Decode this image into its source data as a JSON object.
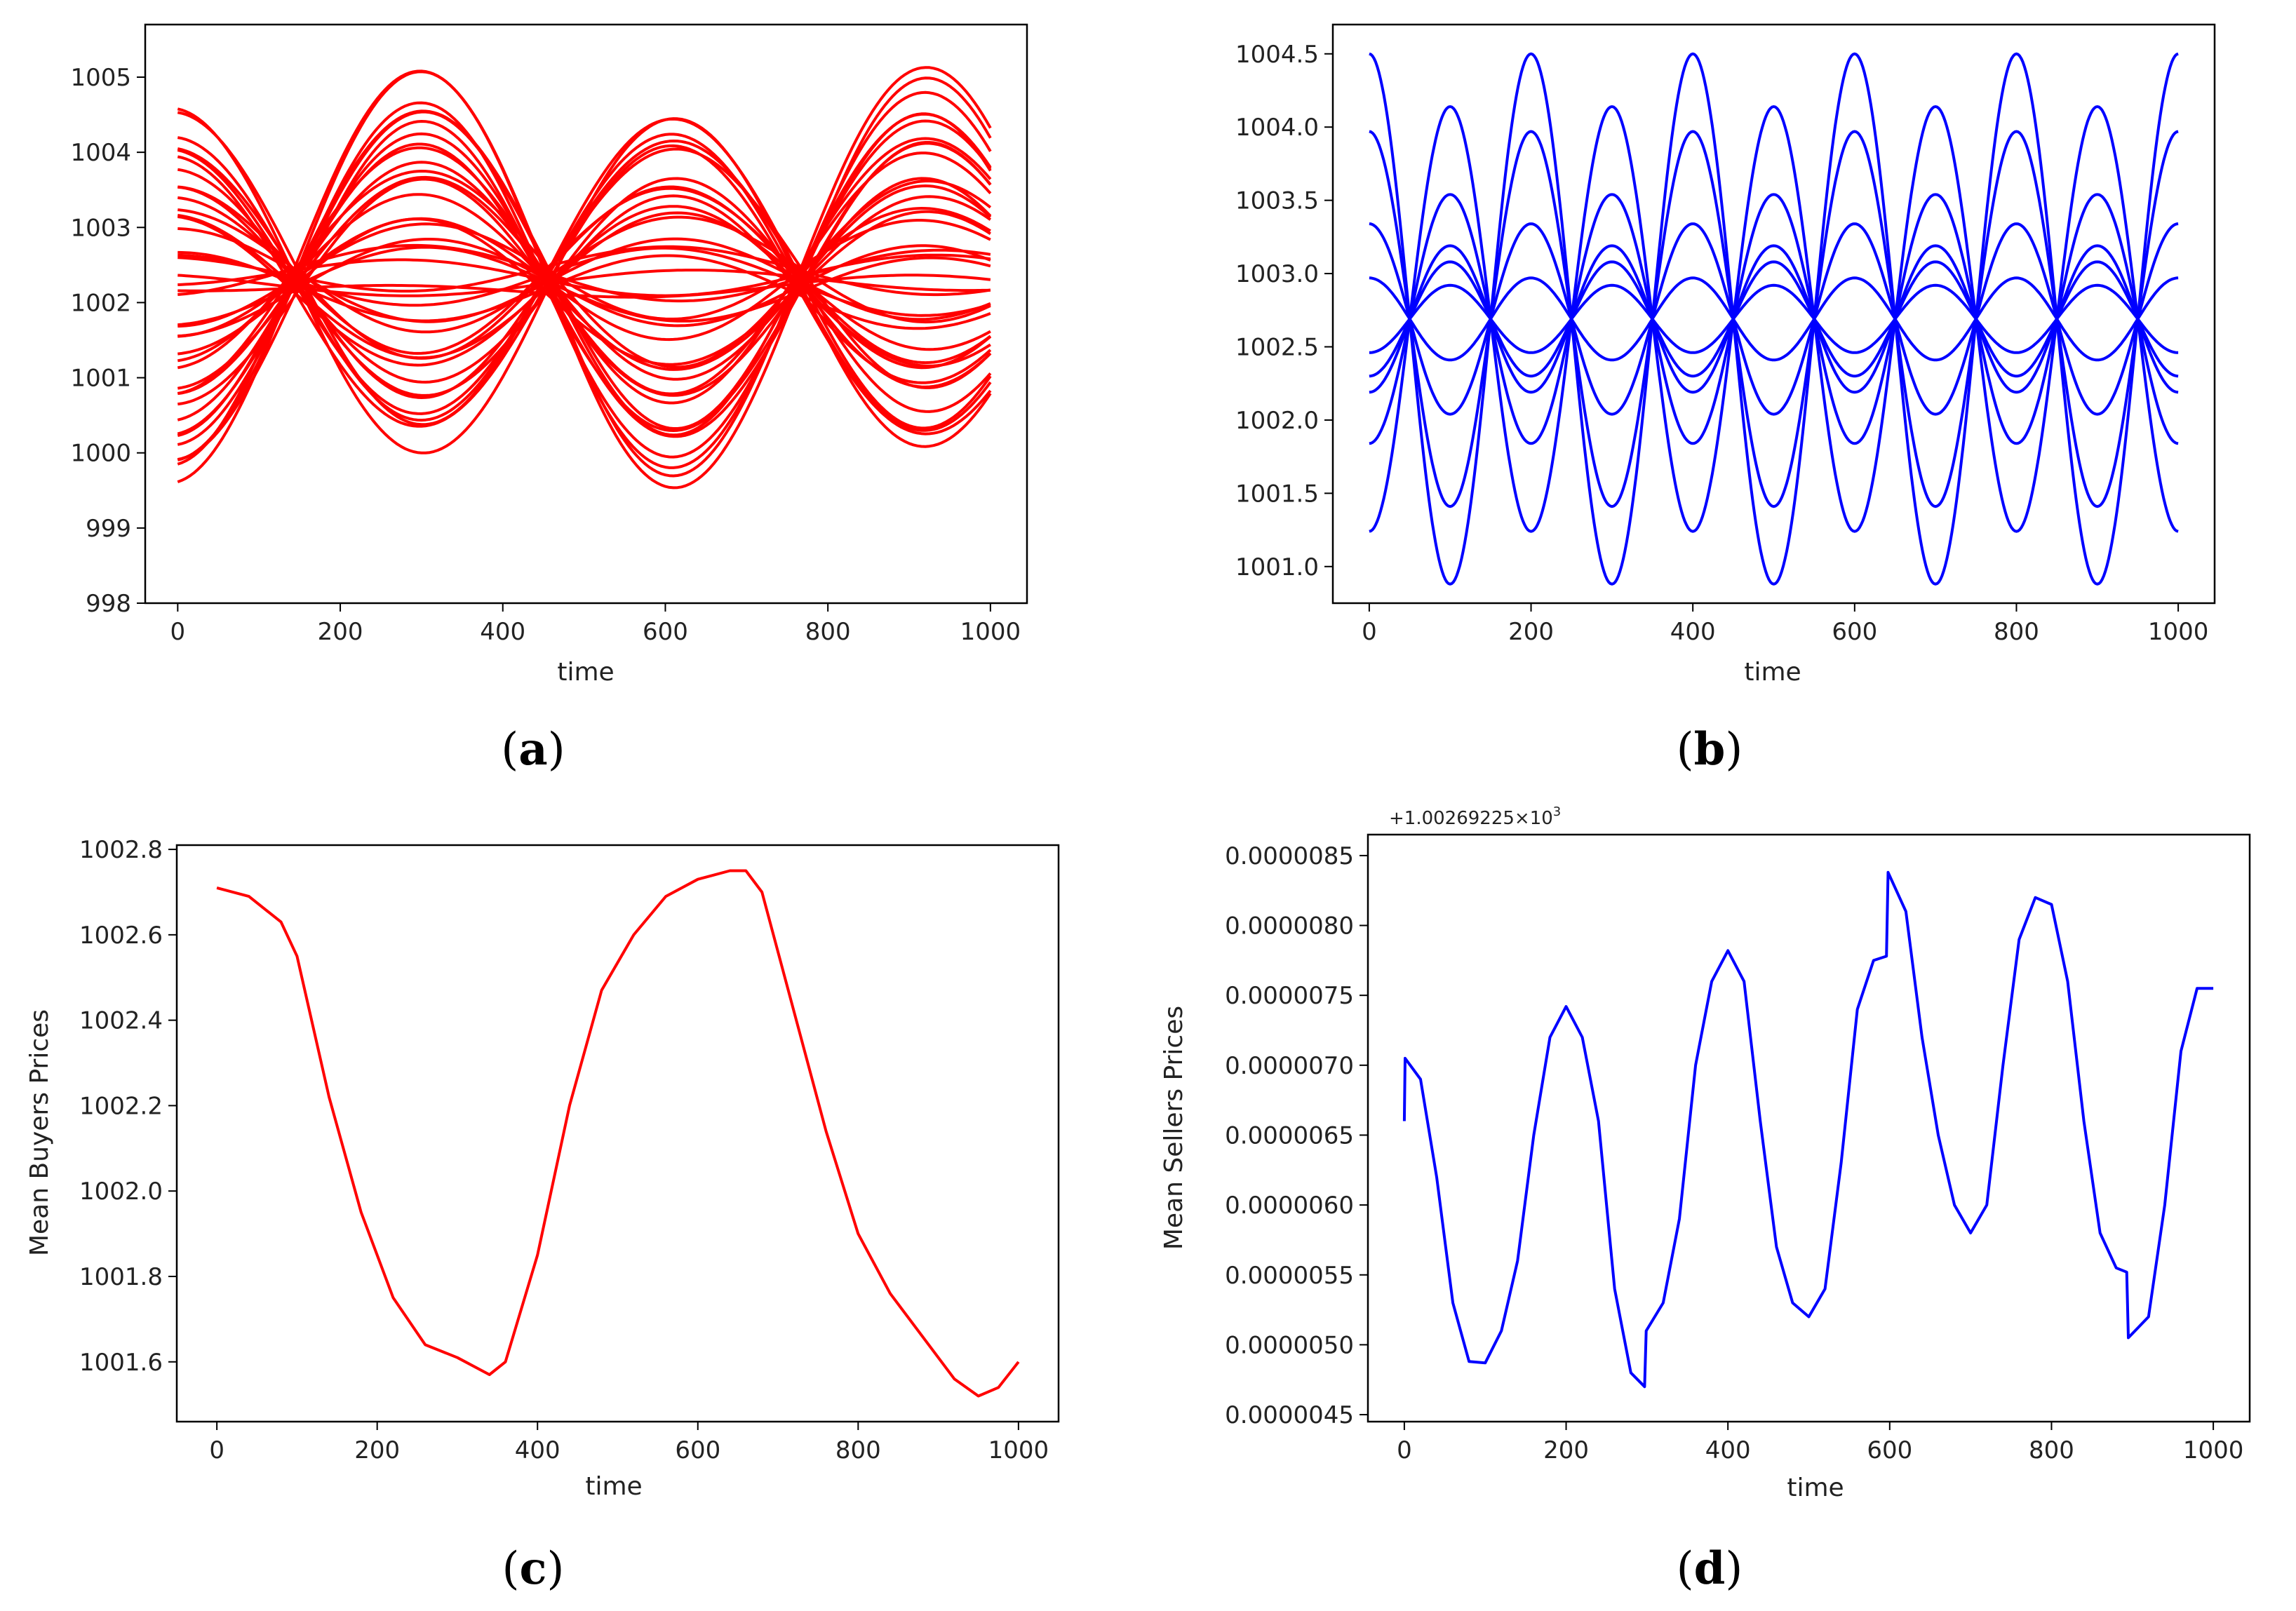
{
  "chart_data": [
    {
      "id": "a",
      "type": "line",
      "caption": "a",
      "xlabel": "time",
      "ylabel": "",
      "xlim": [
        -40,
        1045
      ],
      "ylim": [
        998,
        1005.7
      ],
      "xticks": [
        "0",
        "200",
        "400",
        "600",
        "800",
        "1000"
      ],
      "xtick_values": [
        0,
        200,
        400,
        600,
        800,
        1000
      ],
      "yticks": [
        "998",
        "999",
        "1000",
        "1001",
        "1002",
        "1003",
        "1004",
        "1005"
      ],
      "ytick_values": [
        998,
        999,
        1000,
        1001,
        1002,
        1003,
        1004,
        1005
      ],
      "color": "#ff0000",
      "series_description": "approx. 60 oscillating trajectories, period ~620, crossing near t=160, 470, 780 around 1002.3",
      "series_amplitudes": [
        2.7,
        2.65,
        2.45,
        2.3,
        2.2,
        2.1,
        1.95,
        1.85,
        1.7,
        1.6,
        1.5,
        1.35,
        1.25,
        1.1,
        0.95,
        0.85,
        0.7,
        0.6,
        0.45,
        0.3,
        0.2,
        0.1,
        -0.1,
        -0.25,
        -0.4,
        -0.5,
        -0.6,
        -0.75,
        -0.9,
        -1.0,
        -1.1,
        -1.2,
        -1.3,
        -1.45,
        -1.6,
        -1.75,
        -1.85,
        -1.95,
        -2.1,
        -2.25
      ]
    },
    {
      "id": "b",
      "type": "line",
      "caption": "b",
      "xlabel": "time",
      "ylabel": "",
      "xlim": [
        -45,
        1045
      ],
      "ylim": [
        1000.75,
        1004.7
      ],
      "xticks": [
        "0",
        "200",
        "400",
        "600",
        "800",
        "1000"
      ],
      "xtick_values": [
        0,
        200,
        400,
        600,
        800,
        1000
      ],
      "yticks": [
        "1001.0",
        "1001.5",
        "1002.0",
        "1002.5",
        "1003.0",
        "1003.5",
        "1004.0",
        "1004.5"
      ],
      "ytick_values": [
        1001.0,
        1001.5,
        1002.0,
        1002.5,
        1003.0,
        1003.5,
        1004.0,
        1004.5
      ],
      "color": "#0000ff",
      "series_description": "sinusoidal trajectories with period 200 all crossing 1002.69 every 100 time units",
      "center": 1002.69,
      "series_amplitudes": [
        1.81,
        1.28,
        0.65,
        0.28,
        -0.23,
        -0.39,
        -0.5,
        -0.85,
        -1.45
      ]
    },
    {
      "id": "c",
      "type": "line",
      "caption": "c",
      "xlabel": "time",
      "ylabel": "Mean Buyers Prices",
      "xlim": [
        -50,
        1050
      ],
      "ylim": [
        1001.46,
        1002.81
      ],
      "xticks": [
        "0",
        "200",
        "400",
        "600",
        "800",
        "1000"
      ],
      "xtick_values": [
        0,
        200,
        400,
        600,
        800,
        1000
      ],
      "yticks": [
        "1001.6",
        "1001.8",
        "1002.0",
        "1002.2",
        "1002.4",
        "1002.6",
        "1002.8"
      ],
      "ytick_values": [
        1001.6,
        1001.8,
        1002.0,
        1002.2,
        1002.4,
        1002.6,
        1002.8
      ],
      "color": "#ff0000",
      "x": [
        0,
        40,
        80,
        100,
        140,
        180,
        220,
        260,
        300,
        340,
        360,
        400,
        440,
        480,
        520,
        560,
        600,
        640,
        660,
        680,
        720,
        760,
        800,
        840,
        880,
        920,
        950,
        975,
        1000
      ],
      "y": [
        1002.71,
        1002.69,
        1002.63,
        1002.55,
        1002.22,
        1001.95,
        1001.75,
        1001.64,
        1001.61,
        1001.57,
        1001.6,
        1001.85,
        1002.2,
        1002.47,
        1002.6,
        1002.69,
        1002.73,
        1002.75,
        1002.75,
        1002.7,
        1002.42,
        1002.14,
        1001.9,
        1001.76,
        1001.66,
        1001.56,
        1001.52,
        1001.54,
        1001.6
      ]
    },
    {
      "id": "d",
      "type": "line",
      "caption": "d",
      "xlabel": "time",
      "ylabel": "Mean Sellers Prices",
      "offset_label": "+1.00269225×10",
      "offset_exponent": "3",
      "xlim": [
        -45,
        1045
      ],
      "ylim": [
        4.45e-06,
        8.65e-06
      ],
      "xticks": [
        "0",
        "200",
        "400",
        "600",
        "800",
        "1000"
      ],
      "xtick_values": [
        0,
        200,
        400,
        600,
        800,
        1000
      ],
      "yticks": [
        "0.0000045",
        "0.0000050",
        "0.0000055",
        "0.0000060",
        "0.0000065",
        "0.0000070",
        "0.0000075",
        "0.0000080",
        "0.0000085"
      ],
      "ytick_values": [
        4.5e-06,
        5e-06,
        5.5e-06,
        6e-06,
        6.5e-06,
        7e-06,
        7.5e-06,
        8e-06,
        8.5e-06
      ],
      "color": "#0000ff",
      "x": [
        0,
        1,
        20,
        40,
        60,
        80,
        100,
        120,
        140,
        160,
        180,
        200,
        220,
        240,
        260,
        280,
        297,
        299,
        320,
        340,
        360,
        380,
        400,
        420,
        440,
        460,
        480,
        500,
        520,
        540,
        560,
        580,
        596,
        598,
        620,
        640,
        660,
        680,
        700,
        720,
        740,
        760,
        780,
        800,
        820,
        840,
        860,
        880,
        893,
        895,
        920,
        940,
        960,
        980,
        1000
      ],
      "y": [
        6.6e-06,
        7.05e-06,
        6.9e-06,
        6.2e-06,
        5.3e-06,
        4.88e-06,
        4.87e-06,
        5.1e-06,
        5.6e-06,
        6.5e-06,
        7.2e-06,
        7.42e-06,
        7.2e-06,
        6.6e-06,
        5.4e-06,
        4.8e-06,
        4.7e-06,
        5.1e-06,
        5.3e-06,
        5.9e-06,
        7e-06,
        7.6e-06,
        7.82e-06,
        7.6e-06,
        6.6e-06,
        5.7e-06,
        5.3e-06,
        5.2e-06,
        5.4e-06,
        6.3e-06,
        7.4e-06,
        7.75e-06,
        7.78e-06,
        8.38e-06,
        8.1e-06,
        7.2e-06,
        6.5e-06,
        6e-06,
        5.8e-06,
        6e-06,
        7e-06,
        7.9e-06,
        8.2e-06,
        8.15e-06,
        7.6e-06,
        6.6e-06,
        5.8e-06,
        5.55e-06,
        5.52e-06,
        5.05e-06,
        5.2e-06,
        6e-06,
        7.1e-06,
        7.55e-06,
        7.55e-06
      ]
    }
  ]
}
